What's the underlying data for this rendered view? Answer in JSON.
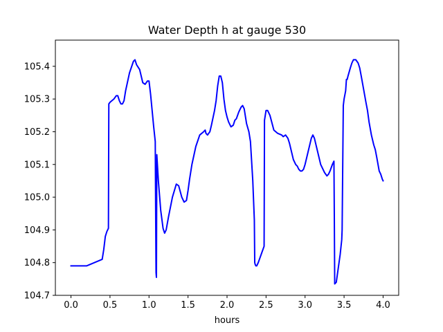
{
  "chart_data": {
    "type": "line",
    "title": "Water Depth h at gauge 530",
    "xlabel": "hours",
    "ylabel": "",
    "xlim": [
      -0.2,
      4.2
    ],
    "ylim": [
      104.7,
      105.48
    ],
    "xticks": [
      0.0,
      0.5,
      1.0,
      1.5,
      2.0,
      2.5,
      3.0,
      3.5,
      4.0
    ],
    "xtick_labels": [
      "0.0",
      "0.5",
      "1.0",
      "1.5",
      "2.0",
      "2.5",
      "3.0",
      "3.5",
      "4.0"
    ],
    "yticks": [
      104.7,
      104.8,
      104.9,
      105.0,
      105.1,
      105.2,
      105.3,
      105.4
    ],
    "ytick_labels": [
      "104.7",
      "104.8",
      "104.9",
      "105.0",
      "105.1",
      "105.2",
      "105.3",
      "105.4"
    ],
    "grid": false,
    "series": [
      {
        "color": "#0000ff",
        "x": [
          0.0,
          0.2,
          0.3,
          0.4,
          0.42,
          0.44,
          0.46,
          0.48,
          0.485,
          0.5,
          0.55,
          0.58,
          0.6,
          0.62,
          0.64,
          0.66,
          0.68,
          0.7,
          0.75,
          0.8,
          0.82,
          0.84,
          0.88,
          0.9,
          0.92,
          0.95,
          0.98,
          1.0,
          1.02,
          1.04,
          1.06,
          1.08,
          1.085,
          1.09,
          1.095,
          1.1,
          1.12,
          1.15,
          1.18,
          1.2,
          1.22,
          1.25,
          1.3,
          1.35,
          1.38,
          1.42,
          1.45,
          1.48,
          1.5,
          1.52,
          1.55,
          1.6,
          1.65,
          1.7,
          1.72,
          1.73,
          1.75,
          1.78,
          1.8,
          1.84,
          1.86,
          1.88,
          1.9,
          1.92,
          1.94,
          1.96,
          1.98,
          2.0,
          2.02,
          2.05,
          2.08,
          2.1,
          2.12,
          2.15,
          2.18,
          2.2,
          2.22,
          2.24,
          2.25,
          2.28,
          2.3,
          2.33,
          2.35,
          2.355,
          2.36,
          2.37,
          2.38,
          2.4,
          2.43,
          2.46,
          2.475,
          2.48,
          2.5,
          2.52,
          2.55,
          2.6,
          2.65,
          2.7,
          2.72,
          2.75,
          2.78,
          2.8,
          2.82,
          2.85,
          2.88,
          2.9,
          2.92,
          2.94,
          2.96,
          2.98,
          3.0,
          3.05,
          3.08,
          3.1,
          3.12,
          3.15,
          3.2,
          3.25,
          3.28,
          3.3,
          3.32,
          3.35,
          3.37,
          3.375,
          3.38,
          3.4,
          3.45,
          3.47,
          3.475,
          3.49,
          3.5,
          3.52,
          3.53,
          3.54,
          3.55,
          3.58,
          3.6,
          3.62,
          3.65,
          3.68,
          3.7,
          3.72,
          3.75,
          3.78,
          3.8,
          3.82,
          3.85,
          3.88,
          3.9,
          3.92,
          3.95,
          3.97,
          3.99,
          4.0
        ],
        "y": [
          104.79,
          104.79,
          104.8,
          104.81,
          104.84,
          104.88,
          104.895,
          104.905,
          105.285,
          105.29,
          105.3,
          105.31,
          105.31,
          105.295,
          105.285,
          105.285,
          105.295,
          105.325,
          105.38,
          105.415,
          105.42,
          105.405,
          105.39,
          105.37,
          105.35,
          105.345,
          105.355,
          105.355,
          105.315,
          105.265,
          105.215,
          105.17,
          104.97,
          104.77,
          104.755,
          105.13,
          105.05,
          104.96,
          104.905,
          104.89,
          104.9,
          104.94,
          105.0,
          105.04,
          105.035,
          105.0,
          104.985,
          104.99,
          105.02,
          105.055,
          105.1,
          105.155,
          105.19,
          105.2,
          105.205,
          105.195,
          105.19,
          105.2,
          105.22,
          105.265,
          105.295,
          105.34,
          105.37,
          105.37,
          105.35,
          105.3,
          105.265,
          105.245,
          105.23,
          105.215,
          105.22,
          105.235,
          105.24,
          105.26,
          105.275,
          105.28,
          105.27,
          105.24,
          105.225,
          105.2,
          105.17,
          105.05,
          104.93,
          104.8,
          104.795,
          104.79,
          104.79,
          104.8,
          104.82,
          104.84,
          104.85,
          105.235,
          105.265,
          105.265,
          105.25,
          105.205,
          105.195,
          105.19,
          105.185,
          105.19,
          105.18,
          105.165,
          105.145,
          105.115,
          105.1,
          105.095,
          105.085,
          105.08,
          105.08,
          105.085,
          105.1,
          105.15,
          105.18,
          105.19,
          105.18,
          105.15,
          105.1,
          105.075,
          105.065,
          105.07,
          105.08,
          105.1,
          105.11,
          104.94,
          104.735,
          104.74,
          104.825,
          104.87,
          104.9,
          105.28,
          105.3,
          105.325,
          105.36,
          105.36,
          105.37,
          105.395,
          105.41,
          105.42,
          105.42,
          105.41,
          105.395,
          105.37,
          105.33,
          105.29,
          105.265,
          105.23,
          105.19,
          105.16,
          105.145,
          105.12,
          105.08,
          105.07,
          105.055,
          105.05
        ]
      }
    ]
  }
}
